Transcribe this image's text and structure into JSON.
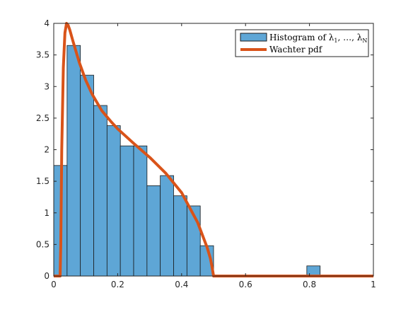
{
  "chart_data": {
    "type": "bar",
    "title": "",
    "xlabel": "",
    "ylabel": "",
    "xlim": [
      0,
      1
    ],
    "ylim": [
      0,
      4
    ],
    "xticks": [
      "0",
      "0.2",
      "0.4",
      "0.6",
      "0.8",
      "1"
    ],
    "yticks": [
      "0",
      "0.5",
      "1",
      "1.5",
      "2",
      "2.5",
      "3",
      "3.5",
      "4"
    ],
    "grid": false,
    "legend_position": "top-right",
    "colors": {
      "bars": "#5ea6d6",
      "bar_edge": "#1a1a1a",
      "pdf": "#d95319",
      "axes": "#262626"
    },
    "bin_width": 0.0417,
    "series": [
      {
        "name": "Histogram of λ1, …, λN",
        "type": "bar",
        "x": [
          0.0,
          0.0417,
          0.0833,
          0.125,
          0.1667,
          0.2083,
          0.25,
          0.2917,
          0.3333,
          0.375,
          0.4167,
          0.4583,
          0.7917
        ],
        "values": [
          1.75,
          3.65,
          3.18,
          2.7,
          2.38,
          2.06,
          2.06,
          1.43,
          1.59,
          1.27,
          1.11,
          0.48,
          0.16
        ]
      },
      {
        "name": "Wachter pdf",
        "type": "line",
        "x": [
          0,
          0.02,
          0.022,
          0.025,
          0.03,
          0.035,
          0.04,
          0.045,
          0.05,
          0.06,
          0.07,
          0.08,
          0.1,
          0.12,
          0.15,
          0.18,
          0.2,
          0.25,
          0.3,
          0.35,
          0.4,
          0.45,
          0.48,
          0.49,
          0.495,
          0.5,
          0.505,
          0.6,
          0.8,
          1.0
        ],
        "values": [
          0,
          0,
          0.5,
          2.0,
          3.3,
          3.85,
          4.0,
          3.97,
          3.9,
          3.72,
          3.55,
          3.38,
          3.1,
          2.88,
          2.62,
          2.44,
          2.33,
          2.1,
          1.88,
          1.63,
          1.32,
          0.85,
          0.45,
          0.28,
          0.15,
          0,
          0,
          0,
          0,
          0
        ]
      }
    ]
  },
  "legend": {
    "histogram": {
      "prefix": "Histogram of λ",
      "sub1": "1",
      "middle": ", …, λ",
      "subN": "N"
    },
    "pdf": "Wachter pdf"
  }
}
